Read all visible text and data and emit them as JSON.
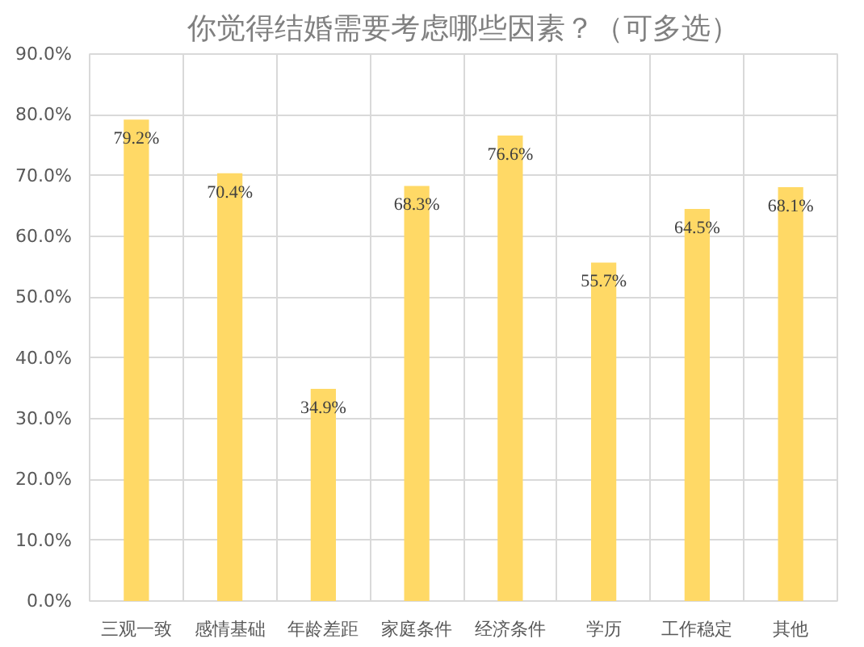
{
  "chart_data": {
    "type": "bar",
    "title": "你觉得结婚需要考虑哪些因素？（可多选）",
    "categories": [
      "三观一致",
      "感情基础",
      "年龄差距",
      "家庭条件",
      "经济条件",
      "学历",
      "工作稳定",
      "其他"
    ],
    "values": [
      79.2,
      70.4,
      34.9,
      68.3,
      76.6,
      55.7,
      64.5,
      68.1
    ],
    "value_labels": [
      "79.2%",
      "70.4%",
      "34.9%",
      "68.3%",
      "76.6%",
      "55.7%",
      "64.5%",
      "68.1%"
    ],
    "color": "#ffd966",
    "ylim": [
      0,
      90
    ],
    "yticks": [
      {
        "value": 0,
        "label": "0.0%"
      },
      {
        "value": 10,
        "label": "10.0%"
      },
      {
        "value": 20,
        "label": "20.0%"
      },
      {
        "value": 30,
        "label": "30.0%"
      },
      {
        "value": 40,
        "label": "40.0%"
      },
      {
        "value": 50,
        "label": "50.0%"
      },
      {
        "value": 60,
        "label": "60.0%"
      },
      {
        "value": 70,
        "label": "70.0%"
      },
      {
        "value": 80,
        "label": "80.0%"
      },
      {
        "value": 90,
        "label": "90.0%"
      }
    ],
    "grid": true
  }
}
